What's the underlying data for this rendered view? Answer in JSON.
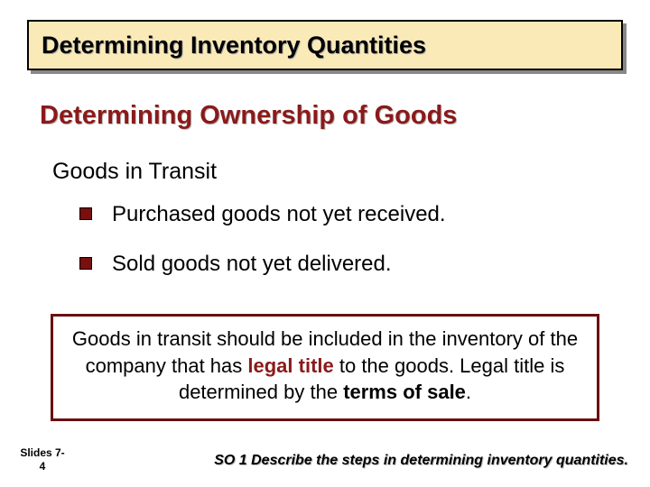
{
  "colors": {
    "title_bg": "#f9eab7",
    "title_border": "#000000",
    "title_shadow": "#888888",
    "accent_red": "#8a1a1a",
    "bullet_fill": "#7a0f0f",
    "callout_border": "#6a1010",
    "page_bg": "#ffffff"
  },
  "typography": {
    "title_fontsize": 27,
    "subtitle_fontsize": 29,
    "section_fontsize": 25,
    "bullet_fontsize": 24,
    "callout_fontsize": 22,
    "footer_left_fontsize": 12,
    "footer_right_fontsize": 16
  },
  "title": "Determining Inventory Quantities",
  "subtitle": "Determining Ownership of Goods",
  "section_head": "Goods in Transit",
  "bullets": [
    "Purchased goods not yet received.",
    "Sold goods not yet delivered."
  ],
  "callout": {
    "pre": "Goods in transit should be included in the inventory of the company that has ",
    "em1": "legal title",
    "mid": " to the goods.  Legal title is determined by the ",
    "em2": "terms of sale",
    "post": "."
  },
  "footer": {
    "slide_label_line1": "Slides 7-",
    "slide_label_line2": "4",
    "objective": "SO 1 Describe the steps in determining inventory quantities."
  }
}
